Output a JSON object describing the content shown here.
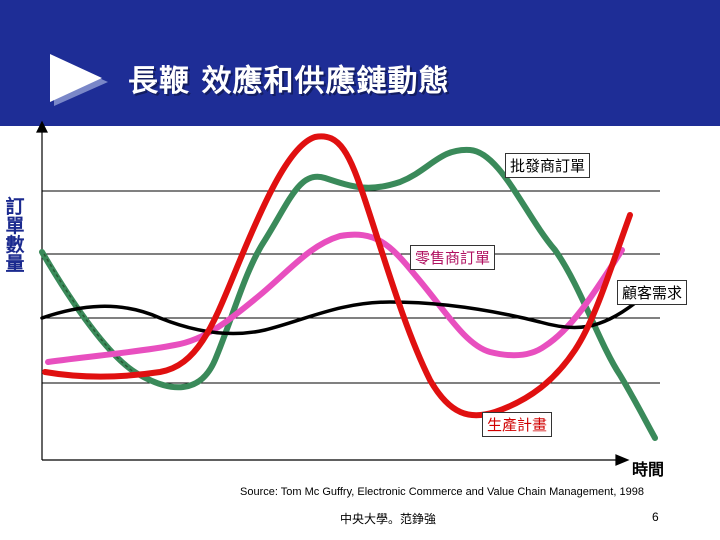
{
  "header": {
    "title": "長鞭 效應和供應鏈動態",
    "background_color": "#1e2d96",
    "title_color": "#ffffff",
    "arrow_icon": "play-triangle-icon"
  },
  "chart": {
    "y_axis_label": "訂單數量",
    "x_axis_label": "時間",
    "gridlines": true,
    "curves": {
      "wholesale_orders": {
        "label": "批發商訂單",
        "color": "#3a8a5a"
      },
      "retail_orders": {
        "label": "零售商訂單",
        "color": "#e84fbf"
      },
      "consumer_demand": {
        "label": "顧客需求",
        "color": "#000000"
      },
      "production_plan": {
        "label": "生產計畫",
        "color": "#e01010"
      }
    }
  },
  "footer": {
    "source": "Source: Tom Mc Guffry, Electronic Commerce and Value Chain Management, 1998",
    "affiliation": "中央大學。范錚強",
    "page_number": "6"
  }
}
